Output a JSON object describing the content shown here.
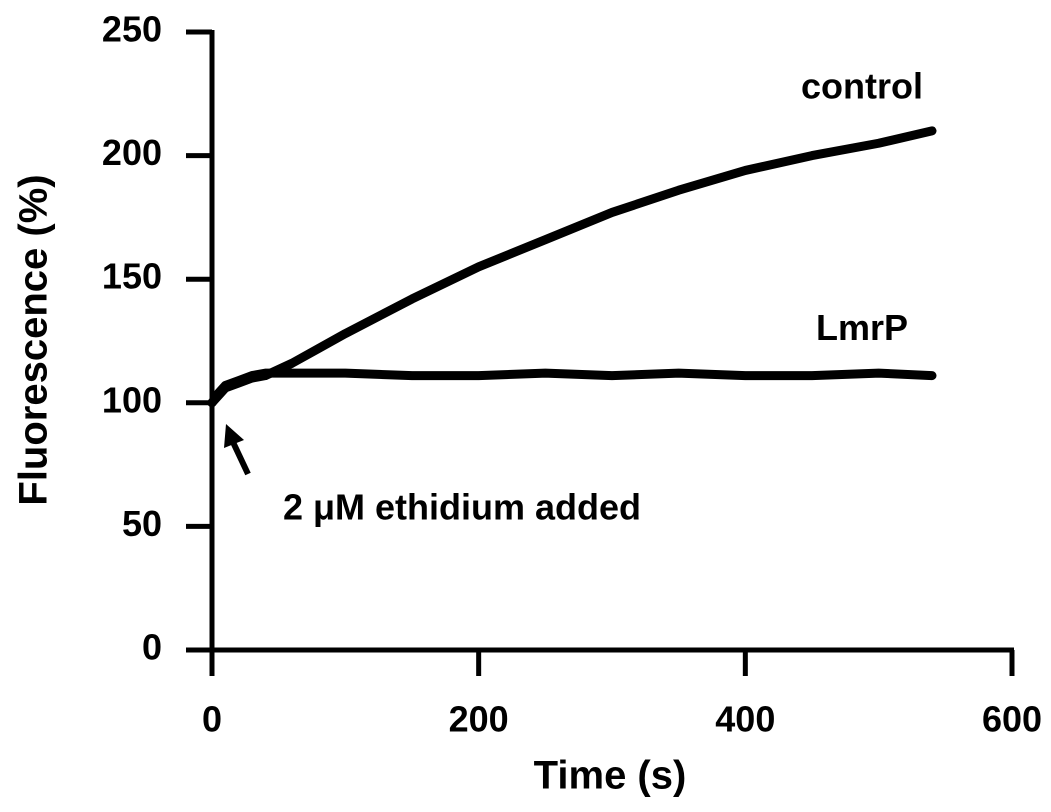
{
  "chart_data": {
    "type": "line",
    "x_label": "Time (s)",
    "y_label": "Fluorescence (%)",
    "annotation": "2 μM ethidium added",
    "x": [
      0,
      5,
      10,
      20,
      30,
      40,
      60,
      80,
      100,
      150,
      200,
      250,
      300,
      350,
      400,
      450,
      500,
      540
    ],
    "series": [
      {
        "name": "control",
        "color": "#000000",
        "values": [
          100,
          103,
          106,
          108,
          110,
          111,
          116,
          122,
          128,
          142,
          155,
          166,
          177,
          186,
          194,
          200,
          205,
          210
        ]
      },
      {
        "name": "LmrP",
        "color": "#000000",
        "values": [
          100,
          104,
          107,
          109,
          111,
          112,
          112,
          112,
          112,
          111,
          111,
          112,
          111,
          112,
          111,
          111,
          112,
          111
        ]
      }
    ],
    "xlim": [
      0,
      600
    ],
    "xticks": [
      0,
      200,
      400,
      600
    ],
    "ylim": [
      0,
      250
    ],
    "yticks": [
      0,
      50,
      100,
      150,
      200,
      250
    ],
    "grid": false
  }
}
